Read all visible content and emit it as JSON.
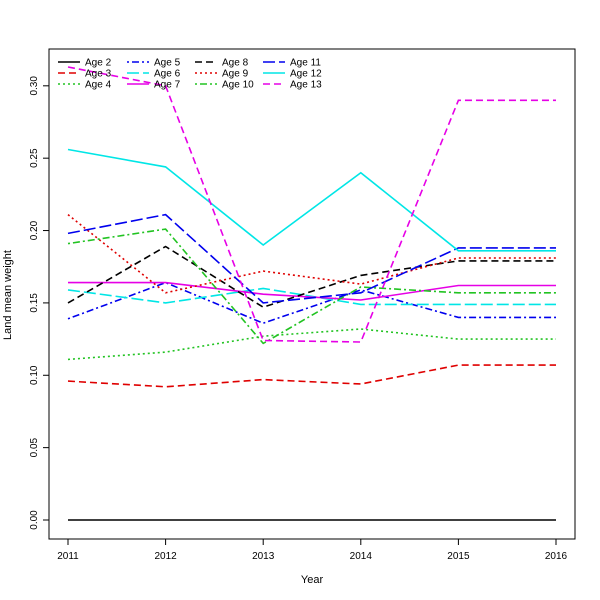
{
  "chart_data": {
    "type": "line",
    "title": "",
    "xlabel": "Year",
    "ylabel": "Land mean weight",
    "x": [
      2011,
      2012,
      2013,
      2014,
      2015,
      2016
    ],
    "x_tick_labels": [
      "2011",
      "2012",
      "2013",
      "2014",
      "2015",
      "2016"
    ],
    "y_ticks": [
      0.0,
      0.05,
      0.1,
      0.15,
      0.2,
      0.25,
      0.3
    ],
    "y_tick_labels": [
      "0.00",
      "0.05",
      "0.10",
      "0.15",
      "0.20",
      "0.25",
      "0.30"
    ],
    "xlim": [
      2011,
      2016
    ],
    "ylim": [
      0,
      0.313
    ],
    "grid": false,
    "legend_position": "top-left",
    "series": [
      {
        "name": "Age 2",
        "color": "#000000",
        "dash": "solid",
        "values": [
          0.0,
          0.0,
          0.0,
          0.0,
          0.0,
          0.0
        ]
      },
      {
        "name": "Age 3",
        "color": "#DF0000",
        "dash": "dashed",
        "values": [
          0.096,
          0.092,
          0.097,
          0.094,
          0.107,
          0.107
        ]
      },
      {
        "name": "Age 4",
        "color": "#22C322",
        "dash": "dotted",
        "values": [
          0.111,
          0.116,
          0.127,
          0.132,
          0.125,
          0.125
        ]
      },
      {
        "name": "Age 5",
        "color": "#0000EE",
        "dash": "dotdash",
        "values": [
          0.139,
          0.164,
          0.136,
          0.159,
          0.14,
          0.14
        ]
      },
      {
        "name": "Age 6",
        "color": "#00E6E6",
        "dash": "longdash",
        "values": [
          0.159,
          0.15,
          0.16,
          0.149,
          0.149,
          0.149
        ]
      },
      {
        "name": "Age 7",
        "color": "#E600E6",
        "dash": "solid",
        "values": [
          0.164,
          0.164,
          0.156,
          0.152,
          0.162,
          0.162
        ]
      },
      {
        "name": "Age 8",
        "color": "#000000",
        "dash": "dashed",
        "values": [
          0.15,
          0.189,
          0.147,
          0.169,
          0.179,
          0.179
        ]
      },
      {
        "name": "Age 9",
        "color": "#DF0000",
        "dash": "dotted",
        "values": [
          0.211,
          0.157,
          0.172,
          0.163,
          0.181,
          0.181
        ]
      },
      {
        "name": "Age 10",
        "color": "#22C322",
        "dash": "dotdash",
        "values": [
          0.191,
          0.201,
          0.122,
          0.161,
          0.157,
          0.157
        ]
      },
      {
        "name": "Age 11",
        "color": "#0000EE",
        "dash": "longdash",
        "values": [
          0.198,
          0.211,
          0.15,
          0.157,
          0.188,
          0.188
        ]
      },
      {
        "name": "Age 12",
        "color": "#00E6E6",
        "dash": "solid",
        "values": [
          0.256,
          0.244,
          0.19,
          0.24,
          0.186,
          0.186
        ]
      },
      {
        "name": "Age 13",
        "color": "#E600E6",
        "dash": "dashed",
        "values": [
          0.313,
          0.3,
          0.124,
          0.123,
          0.29,
          0.29
        ]
      }
    ]
  }
}
